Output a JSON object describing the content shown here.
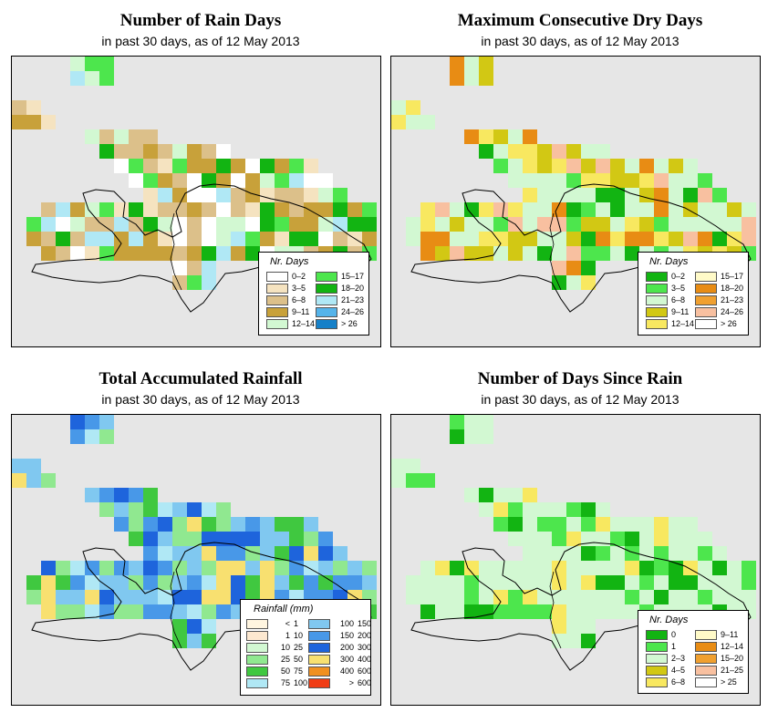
{
  "panels": [
    {
      "id": "rain-days",
      "title": "Number of Rain Days",
      "subtitle": "in past 30 days, as of  12 May 2013",
      "legend": {
        "title": "Nr. Days",
        "items": [
          {
            "label": "0–2",
            "color": "#ffffff"
          },
          {
            "label": "3–5",
            "color": "#f5e3c0"
          },
          {
            "label": "6–8",
            "color": "#dcc08a"
          },
          {
            "label": "9–11",
            "color": "#c8a13a"
          },
          {
            "label": "12–14",
            "color": "#d2f8d2"
          },
          {
            "label": "15–17",
            "color": "#4de64d"
          },
          {
            "label": "18–20",
            "color": "#12b412"
          },
          {
            "label": "21–23",
            "color": "#b0e8f5"
          },
          {
            "label": "24–26",
            "color": "#55b4ea"
          },
          {
            "label": "> 26",
            "color": "#1580c8"
          }
        ]
      }
    },
    {
      "id": "max-dry-days",
      "title": "Maximum Consecutive Dry Days",
      "subtitle": "in past 30 days, as of  12 May 2013",
      "legend": {
        "title": "Nr. Days",
        "items": [
          {
            "label": "0–2",
            "color": "#12b412"
          },
          {
            "label": "3–5",
            "color": "#4de64d"
          },
          {
            "label": "6–8",
            "color": "#d2f8d2"
          },
          {
            "label": "9–11",
            "color": "#d2c814"
          },
          {
            "label": "12–14",
            "color": "#f8e860"
          },
          {
            "label": "15–17",
            "color": "#fffac8"
          },
          {
            "label": "18–20",
            "color": "#e88c14"
          },
          {
            "label": "21–23",
            "color": "#f0a030"
          },
          {
            "label": "24–26",
            "color": "#f8c0a0"
          },
          {
            "label": "> 26",
            "color": "#ffffff"
          }
        ]
      }
    },
    {
      "id": "total-rainfall",
      "title": "Total Accumulated Rainfall",
      "subtitle": "in past 30 days, as of  12 May 2013",
      "legend": {
        "title": "Rainfall (mm)",
        "items": [
          {
            "lo": "<",
            "hi": "1",
            "color": "#fff5e0"
          },
          {
            "lo": "1",
            "hi": "10",
            "color": "#fde8d0"
          },
          {
            "lo": "10",
            "hi": "25",
            "color": "#d2f8d2"
          },
          {
            "lo": "25",
            "hi": "50",
            "color": "#90e890"
          },
          {
            "lo": "50",
            "hi": "75",
            "color": "#40c840"
          },
          {
            "lo": "75",
            "hi": "100",
            "color": "#b0e8f5"
          },
          {
            "lo": "100",
            "hi": "150",
            "color": "#80c8f0"
          },
          {
            "lo": "150",
            "hi": "200",
            "color": "#4898e8"
          },
          {
            "lo": "200",
            "hi": "300",
            "color": "#1e64dc"
          },
          {
            "lo": "300",
            "hi": "400",
            "color": "#f8e070"
          },
          {
            "lo": "400",
            "hi": "600",
            "color": "#f09020"
          },
          {
            "lo": ">",
            "hi": "600",
            "color": "#f03c14"
          }
        ]
      }
    },
    {
      "id": "days-since-rain",
      "title": "Number of Days Since Rain",
      "subtitle": "in past 30 days, as of  12 May 2013",
      "legend": {
        "title": "Nr. Days",
        "items": [
          {
            "label": "0",
            "color": "#12b412"
          },
          {
            "label": "1",
            "color": "#4de64d"
          },
          {
            "label": "2–3",
            "color": "#d2f8d2"
          },
          {
            "label": "4–5",
            "color": "#d2c814"
          },
          {
            "label": "6–8",
            "color": "#f8e860"
          },
          {
            "label": "9–11",
            "color": "#fffac8"
          },
          {
            "label": "12–14",
            "color": "#e88c14"
          },
          {
            "label": "15–20",
            "color": "#f0a030"
          },
          {
            "label": "21–25",
            "color": "#f8c0a0"
          },
          {
            "label": "> 25",
            "color": "#ffffff"
          }
        ]
      }
    }
  ]
}
